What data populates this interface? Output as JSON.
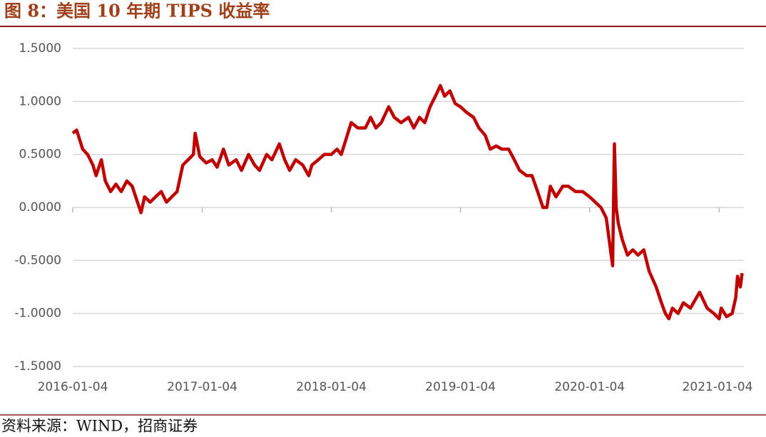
{
  "chart_data": {
    "type": "line",
    "title": "图 8：美国 10 年期 TIPS 收益率",
    "source": "资料来源：WIND，招商证券",
    "xlim": [
      "2016-01-04",
      "2021-03-15"
    ],
    "xticks": [
      "2016-01-04",
      "2017-01-04",
      "2018-01-04",
      "2019-01-04",
      "2020-01-04",
      "2021-01-04"
    ],
    "ylim": [
      -1.5,
      1.5
    ],
    "yticks": [
      {
        "value": -1.5,
        "label": "-1.5000"
      },
      {
        "value": -1,
        "label": "-1.0000"
      },
      {
        "value": -0.5,
        "label": "-0.5000"
      },
      {
        "value": 0,
        "label": "0.0000"
      },
      {
        "value": 0.5,
        "label": "0.5000"
      },
      {
        "value": 1,
        "label": "1.0000"
      },
      {
        "value": 1.5,
        "label": "1.5000"
      }
    ],
    "grid": true,
    "series": [
      {
        "color": "#c00000",
        "x": [
          "2016-01-04",
          "2016-01-15",
          "2016-02-01",
          "2016-02-15",
          "2016-03-01",
          "2016-03-10",
          "2016-03-25",
          "2016-04-05",
          "2016-04-20",
          "2016-05-05",
          "2016-05-20",
          "2016-06-05",
          "2016-06-20",
          "2016-07-08",
          "2016-07-15",
          "2016-07-25",
          "2016-08-10",
          "2016-08-25",
          "2016-09-10",
          "2016-09-25",
          "2016-10-10",
          "2016-10-25",
          "2016-11-10",
          "2016-11-25",
          "2016-12-10",
          "2016-12-15",
          "2016-12-28",
          "2017-01-15",
          "2017-02-01",
          "2017-02-15",
          "2017-03-05",
          "2017-03-20",
          "2017-04-10",
          "2017-04-25",
          "2017-05-15",
          "2017-06-01",
          "2017-06-15",
          "2017-07-05",
          "2017-07-20",
          "2017-08-10",
          "2017-08-25",
          "2017-09-08",
          "2017-09-25",
          "2017-10-15",
          "2017-11-01",
          "2017-11-10",
          "2017-11-28",
          "2017-12-15",
          "2018-01-04",
          "2018-01-20",
          "2018-02-01",
          "2018-02-15",
          "2018-03-01",
          "2018-03-20",
          "2018-04-10",
          "2018-04-25",
          "2018-05-10",
          "2018-05-25",
          "2018-06-15",
          "2018-07-01",
          "2018-07-20",
          "2018-08-10",
          "2018-08-25",
          "2018-09-10",
          "2018-09-25",
          "2018-10-10",
          "2018-10-25",
          "2018-11-08",
          "2018-11-20",
          "2018-12-05",
          "2018-12-20",
          "2019-01-04",
          "2019-01-20",
          "2019-02-10",
          "2019-02-25",
          "2019-03-15",
          "2019-03-29",
          "2019-04-15",
          "2019-05-01",
          "2019-05-20",
          "2019-06-05",
          "2019-06-20",
          "2019-07-10",
          "2019-07-25",
          "2019-08-10",
          "2019-08-25",
          "2019-09-05",
          "2019-09-15",
          "2019-10-01",
          "2019-10-20",
          "2019-11-05",
          "2019-11-25",
          "2019-12-15",
          "2020-01-04",
          "2020-01-20",
          "2020-02-05",
          "2020-02-20",
          "2020-03-05",
          "2020-03-09",
          "2020-03-14",
          "2020-03-19",
          "2020-03-25",
          "2020-04-05",
          "2020-04-20",
          "2020-05-05",
          "2020-05-20",
          "2020-06-05",
          "2020-06-20",
          "2020-07-10",
          "2020-07-25",
          "2020-08-05",
          "2020-08-15",
          "2020-08-25",
          "2020-09-10",
          "2020-09-25",
          "2020-10-15",
          "2020-11-01",
          "2020-11-10",
          "2020-12-01",
          "2020-12-20",
          "2021-01-04",
          "2021-01-10",
          "2021-01-25",
          "2021-02-10",
          "2021-02-20",
          "2021-02-25",
          "2021-03-05",
          "2021-03-10"
        ],
        "values": [
          0.7,
          0.73,
          0.55,
          0.5,
          0.4,
          0.3,
          0.45,
          0.25,
          0.15,
          0.22,
          0.15,
          0.25,
          0.2,
          0.02,
          -0.05,
          0.1,
          0.05,
          0.1,
          0.15,
          0.05,
          0.1,
          0.15,
          0.4,
          0.45,
          0.5,
          0.7,
          0.48,
          0.42,
          0.45,
          0.38,
          0.55,
          0.4,
          0.45,
          0.35,
          0.5,
          0.4,
          0.35,
          0.5,
          0.45,
          0.6,
          0.45,
          0.35,
          0.45,
          0.4,
          0.3,
          0.4,
          0.45,
          0.5,
          0.5,
          0.55,
          0.5,
          0.65,
          0.8,
          0.75,
          0.75,
          0.85,
          0.75,
          0.8,
          0.95,
          0.85,
          0.8,
          0.85,
          0.75,
          0.85,
          0.8,
          0.95,
          1.05,
          1.15,
          1.05,
          1.1,
          0.98,
          0.95,
          0.9,
          0.85,
          0.75,
          0.68,
          0.55,
          0.58,
          0.55,
          0.55,
          0.45,
          0.35,
          0.3,
          0.3,
          0.15,
          0.0,
          0.0,
          0.2,
          0.1,
          0.2,
          0.2,
          0.15,
          0.15,
          0.1,
          0.05,
          0.0,
          -0.1,
          -0.45,
          -0.55,
          0.6,
          0.0,
          -0.15,
          -0.3,
          -0.45,
          -0.4,
          -0.45,
          -0.4,
          -0.6,
          -0.75,
          -0.9,
          -1.0,
          -1.05,
          -0.95,
          -1.0,
          -0.9,
          -0.95,
          -0.85,
          -0.8,
          -0.95,
          -1.0,
          -1.05,
          -0.95,
          -1.03,
          -1.0,
          -0.85,
          -0.65,
          -0.75,
          -0.62
        ]
      }
    ]
  }
}
